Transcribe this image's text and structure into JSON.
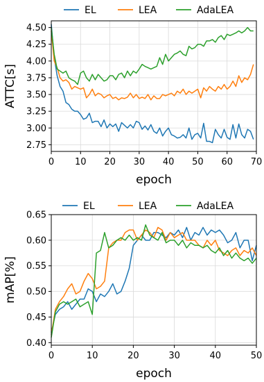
{
  "chart_data": [
    {
      "type": "line",
      "xlabel": "epoch",
      "ylabel": "ATTC[s]",
      "xlim": [
        0,
        70
      ],
      "ylim": [
        2.65,
        4.6
      ],
      "xticks": [
        0,
        10,
        20,
        30,
        40,
        50,
        60,
        70
      ],
      "xtick_labels": [
        "0",
        "10",
        "20",
        "30",
        "40",
        "50",
        "60",
        "70"
      ],
      "yticks": [
        2.75,
        3.0,
        3.25,
        3.5,
        3.75,
        4.0,
        4.25,
        4.5
      ],
      "ytick_labels": [
        "2.75",
        "3.00",
        "3.25",
        "3.50",
        "3.75",
        "4.00",
        "4.25",
        "4.50"
      ],
      "grid": true,
      "legend_position": "above",
      "series": [
        {
          "name": "EL",
          "color": "#1f77b4",
          "x": [
            0,
            1,
            2,
            3,
            4,
            5,
            6,
            7,
            8,
            9,
            10,
            11,
            12,
            13,
            14,
            15,
            16,
            17,
            18,
            19,
            20,
            21,
            22,
            23,
            24,
            25,
            26,
            27,
            28,
            29,
            30,
            31,
            32,
            33,
            34,
            35,
            36,
            37,
            38,
            39,
            40,
            41,
            42,
            43,
            44,
            45,
            46,
            47,
            48,
            49,
            50,
            51,
            52,
            53,
            54,
            55,
            56,
            57,
            58,
            59,
            60,
            61,
            62,
            63,
            64,
            65,
            66,
            67,
            68,
            69
          ],
          "values": [
            4.55,
            4.05,
            3.78,
            3.62,
            3.55,
            3.38,
            3.35,
            3.28,
            3.25,
            3.25,
            3.2,
            3.13,
            3.15,
            3.22,
            3.08,
            3.1,
            3.1,
            3.02,
            3.12,
            3.0,
            3.06,
            3.02,
            3.06,
            2.95,
            3.08,
            3.04,
            3.0,
            3.05,
            3.0,
            3.1,
            3.08,
            2.98,
            3.03,
            2.97,
            3.05,
            2.95,
            2.92,
            3.0,
            2.88,
            2.95,
            3.0,
            2.9,
            2.88,
            2.85,
            2.86,
            2.9,
            2.85,
            3.0,
            2.83,
            2.9,
            2.92,
            2.85,
            3.07,
            2.8,
            2.8,
            2.78,
            2.98,
            2.9,
            2.85,
            2.98,
            2.86,
            2.83,
            3.05,
            2.85,
            3.06,
            2.9,
            2.85,
            2.98,
            2.95,
            2.83
          ]
        },
        {
          "name": "LEA",
          "color": "#ff7f0e",
          "x": [
            0,
            1,
            2,
            3,
            4,
            5,
            6,
            7,
            8,
            9,
            10,
            11,
            12,
            13,
            14,
            15,
            16,
            17,
            18,
            19,
            20,
            21,
            22,
            23,
            24,
            25,
            26,
            27,
            28,
            29,
            30,
            31,
            32,
            33,
            34,
            35,
            36,
            37,
            38,
            39,
            40,
            41,
            42,
            43,
            44,
            45,
            46,
            47,
            48,
            49,
            50,
            51,
            52,
            53,
            54,
            55,
            56,
            57,
            58,
            59,
            60,
            61,
            62,
            63,
            64,
            65,
            66,
            67,
            68,
            69
          ],
          "values": [
            4.45,
            4.0,
            3.9,
            3.75,
            3.7,
            3.72,
            3.68,
            3.58,
            3.62,
            3.6,
            3.58,
            3.6,
            3.45,
            3.5,
            3.58,
            3.48,
            3.52,
            3.5,
            3.45,
            3.48,
            3.5,
            3.44,
            3.46,
            3.42,
            3.45,
            3.44,
            3.46,
            3.52,
            3.45,
            3.5,
            3.44,
            3.46,
            3.44,
            3.5,
            3.42,
            3.48,
            3.44,
            3.44,
            3.5,
            3.48,
            3.5,
            3.52,
            3.48,
            3.55,
            3.52,
            3.58,
            3.5,
            3.55,
            3.52,
            3.55,
            3.58,
            3.45,
            3.6,
            3.55,
            3.62,
            3.58,
            3.55,
            3.62,
            3.58,
            3.65,
            3.58,
            3.62,
            3.7,
            3.62,
            3.78,
            3.68,
            3.75,
            3.72,
            3.8,
            3.95
          ]
        },
        {
          "name": "AdaLEA",
          "color": "#2ca02c",
          "x": [
            0,
            1,
            2,
            3,
            4,
            5,
            6,
            7,
            8,
            9,
            10,
            11,
            12,
            13,
            14,
            15,
            16,
            17,
            18,
            19,
            20,
            21,
            22,
            23,
            24,
            25,
            26,
            27,
            28,
            29,
            30,
            31,
            32,
            33,
            34,
            35,
            36,
            37,
            38,
            39,
            40,
            41,
            42,
            43,
            44,
            45,
            46,
            47,
            48,
            49,
            50,
            51,
            52,
            53,
            54,
            55,
            56,
            57,
            58,
            59,
            60,
            61,
            62,
            63,
            64,
            65,
            66,
            67,
            68,
            69
          ],
          "values": [
            4.5,
            4.1,
            3.88,
            3.85,
            3.82,
            3.85,
            3.75,
            3.72,
            3.7,
            3.65,
            3.82,
            3.85,
            3.75,
            3.7,
            3.8,
            3.72,
            3.8,
            3.75,
            3.7,
            3.72,
            3.78,
            3.78,
            3.72,
            3.8,
            3.82,
            3.75,
            3.85,
            3.78,
            3.85,
            3.82,
            3.88,
            3.95,
            3.92,
            3.9,
            3.88,
            3.9,
            3.92,
            4.05,
            3.95,
            4.1,
            4.0,
            4.05,
            4.1,
            4.12,
            4.15,
            4.1,
            4.08,
            4.22,
            4.18,
            4.2,
            4.25,
            4.25,
            4.22,
            4.3,
            4.3,
            4.32,
            4.28,
            4.35,
            4.38,
            4.32,
            4.4,
            4.38,
            4.4,
            4.42,
            4.45,
            4.42,
            4.45,
            4.5,
            4.45,
            4.45
          ]
        }
      ]
    },
    {
      "type": "line",
      "xlabel": "epoch",
      "ylabel": "mAP[%]",
      "xlim": [
        0,
        50
      ],
      "ylim": [
        0.395,
        0.65
      ],
      "xticks": [
        0,
        10,
        20,
        30,
        40,
        50
      ],
      "xtick_labels": [
        "0",
        "10",
        "20",
        "30",
        "40",
        "50"
      ],
      "yticks": [
        0.4,
        0.45,
        0.5,
        0.55,
        0.6,
        0.65
      ],
      "ytick_labels": [
        "0.40",
        "0.45",
        "0.50",
        "0.55",
        "0.60",
        "0.65"
      ],
      "grid": true,
      "legend_position": "top",
      "series": [
        {
          "name": "EL",
          "color": "#1f77b4",
          "x": [
            0,
            1,
            2,
            3,
            4,
            5,
            6,
            7,
            8,
            9,
            10,
            11,
            12,
            13,
            14,
            15,
            16,
            17,
            18,
            19,
            20,
            21,
            22,
            23,
            24,
            25,
            26,
            27,
            28,
            29,
            30,
            31,
            32,
            33,
            34,
            35,
            36,
            37,
            38,
            39,
            40,
            41,
            42,
            43,
            44,
            45,
            46,
            47,
            48,
            49,
            50
          ],
          "values": [
            0.42,
            0.455,
            0.465,
            0.47,
            0.48,
            0.465,
            0.475,
            0.485,
            0.485,
            0.505,
            0.5,
            0.48,
            0.495,
            0.49,
            0.5,
            0.515,
            0.495,
            0.5,
            0.52,
            0.545,
            0.59,
            0.6,
            0.61,
            0.6,
            0.6,
            0.615,
            0.615,
            0.61,
            0.605,
            0.615,
            0.61,
            0.62,
            0.605,
            0.625,
            0.6,
            0.615,
            0.61,
            0.625,
            0.61,
            0.62,
            0.615,
            0.62,
            0.61,
            0.595,
            0.6,
            0.615,
            0.585,
            0.6,
            0.6,
            0.56,
            0.59
          ]
        },
        {
          "name": "LEA",
          "color": "#ff7f0e",
          "x": [
            0,
            1,
            2,
            3,
            4,
            5,
            6,
            7,
            8,
            9,
            10,
            11,
            12,
            13,
            14,
            15,
            16,
            17,
            18,
            19,
            20,
            21,
            22,
            23,
            24,
            25,
            26,
            27,
            28,
            29,
            30,
            31,
            32,
            33,
            34,
            35,
            36,
            37,
            38,
            39,
            40,
            41,
            42,
            43,
            44,
            45,
            46,
            47,
            48,
            49,
            50
          ],
          "values": [
            0.415,
            0.465,
            0.48,
            0.49,
            0.505,
            0.515,
            0.495,
            0.5,
            0.52,
            0.535,
            0.525,
            0.505,
            0.51,
            0.52,
            0.585,
            0.595,
            0.6,
            0.6,
            0.615,
            0.62,
            0.62,
            0.6,
            0.61,
            0.62,
            0.615,
            0.605,
            0.625,
            0.62,
            0.6,
            0.615,
            0.605,
            0.61,
            0.615,
            0.6,
            0.6,
            0.6,
            0.59,
            0.585,
            0.6,
            0.59,
            0.6,
            0.58,
            0.575,
            0.57,
            0.58,
            0.585,
            0.57,
            0.58,
            0.575,
            0.585,
            0.57
          ]
        },
        {
          "name": "AdaLEA",
          "color": "#2ca02c",
          "x": [
            0,
            1,
            2,
            3,
            4,
            5,
            6,
            7,
            8,
            9,
            10,
            11,
            12,
            13,
            14,
            15,
            16,
            17,
            18,
            19,
            20,
            21,
            22,
            23,
            24,
            25,
            26,
            27,
            28,
            29,
            30,
            31,
            32,
            33,
            34,
            35,
            36,
            37,
            38,
            39,
            40,
            41,
            42,
            43,
            44,
            45,
            46,
            47,
            48,
            49,
            50
          ],
          "values": [
            0.41,
            0.46,
            0.475,
            0.48,
            0.475,
            0.48,
            0.485,
            0.47,
            0.475,
            0.48,
            0.455,
            0.575,
            0.58,
            0.615,
            0.585,
            0.59,
            0.6,
            0.605,
            0.6,
            0.61,
            0.6,
            0.605,
            0.6,
            0.63,
            0.61,
            0.605,
            0.6,
            0.615,
            0.595,
            0.6,
            0.6,
            0.59,
            0.6,
            0.585,
            0.595,
            0.59,
            0.59,
            0.585,
            0.59,
            0.58,
            0.575,
            0.585,
            0.57,
            0.58,
            0.565,
            0.575,
            0.565,
            0.56,
            0.565,
            0.555,
            0.565
          ]
        }
      ]
    }
  ]
}
